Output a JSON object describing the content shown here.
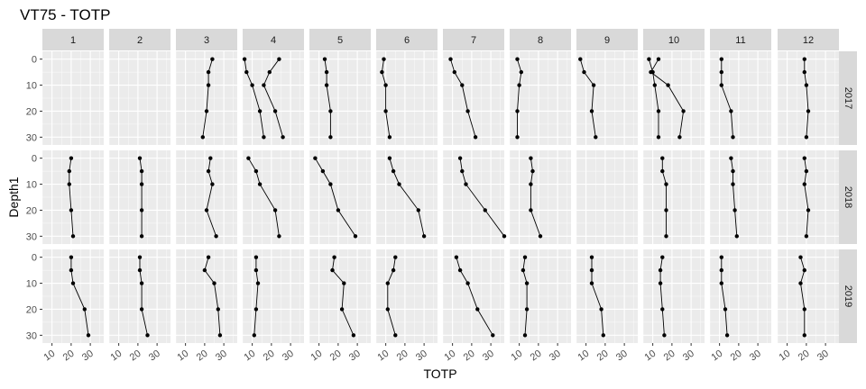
{
  "chart_data": {
    "type": "line",
    "title": "VT75  -  TOTP",
    "xlabel": "TOTP",
    "ylabel": "Depth1",
    "xlim": [
      5,
      37
    ],
    "ylim": [
      -3,
      33
    ],
    "x_ticks": [
      10,
      20,
      30
    ],
    "y_ticks": [
      0,
      10,
      20,
      30
    ],
    "y_reversed": true,
    "grid": true,
    "colors": {
      "panel_bg": "#ebebeb",
      "strip_bg": "#d9d9d9",
      "grid_major": "#ffffff",
      "line": "#000000",
      "point": "#000000"
    },
    "columns": [
      "1",
      "2",
      "3",
      "4",
      "5",
      "6",
      "7",
      "8",
      "9",
      "10",
      "11",
      "12"
    ],
    "rows": [
      "2017",
      "2018",
      "2019"
    ],
    "series": [
      {
        "row": "2017",
        "col": "3",
        "points": [
          [
            24,
            0
          ],
          [
            22,
            5
          ],
          [
            22,
            10
          ],
          [
            21,
            20
          ],
          [
            19,
            30
          ]
        ]
      },
      {
        "row": "2017",
        "col": "4",
        "points": [
          [
            6,
            0
          ],
          [
            7,
            5
          ],
          [
            10,
            10
          ],
          [
            14,
            20
          ],
          [
            16,
            30
          ]
        ]
      },
      {
        "row": "2017",
        "col": "4",
        "points": [
          [
            24,
            0
          ],
          [
            19,
            5
          ],
          [
            16,
            10
          ],
          [
            22,
            20
          ],
          [
            26,
            30
          ]
        ]
      },
      {
        "row": "2017",
        "col": "5",
        "points": [
          [
            13,
            0
          ],
          [
            14,
            5
          ],
          [
            14,
            10
          ],
          [
            16,
            20
          ],
          [
            16,
            30
          ]
        ]
      },
      {
        "row": "2017",
        "col": "6",
        "points": [
          [
            9,
            0
          ],
          [
            8,
            5
          ],
          [
            10,
            10
          ],
          [
            10,
            20
          ],
          [
            12,
            30
          ]
        ]
      },
      {
        "row": "2017",
        "col": "7",
        "points": [
          [
            9,
            0
          ],
          [
            11,
            5
          ],
          [
            15,
            10
          ],
          [
            18,
            20
          ],
          [
            22,
            30
          ]
        ]
      },
      {
        "row": "2017",
        "col": "8",
        "points": [
          [
            9,
            0
          ],
          [
            11,
            5
          ],
          [
            10,
            10
          ],
          [
            9,
            20
          ],
          [
            9,
            30
          ]
        ]
      },
      {
        "row": "2017",
        "col": "9",
        "points": [
          [
            7,
            0
          ],
          [
            9,
            5
          ],
          [
            14,
            10
          ],
          [
            13,
            20
          ],
          [
            15,
            30
          ]
        ]
      },
      {
        "row": "2017",
        "col": "10",
        "points": [
          [
            8,
            0
          ],
          [
            10,
            5
          ],
          [
            11,
            10
          ],
          [
            13,
            20
          ],
          [
            13,
            30
          ]
        ]
      },
      {
        "row": "2017",
        "col": "10",
        "points": [
          [
            13,
            0
          ],
          [
            9,
            5
          ],
          [
            18,
            10
          ],
          [
            26,
            20
          ],
          [
            24,
            30
          ]
        ]
      },
      {
        "row": "2017",
        "col": "11",
        "points": [
          [
            11,
            0
          ],
          [
            11,
            5
          ],
          [
            11,
            10
          ],
          [
            16,
            20
          ],
          [
            17,
            30
          ]
        ]
      },
      {
        "row": "2017",
        "col": "12",
        "points": [
          [
            19,
            0
          ],
          [
            19,
            5
          ],
          [
            20,
            10
          ],
          [
            21,
            20
          ],
          [
            20,
            30
          ]
        ]
      },
      {
        "row": "2018",
        "col": "1",
        "points": [
          [
            20,
            0
          ],
          [
            19,
            5
          ],
          [
            19,
            10
          ],
          [
            20,
            20
          ],
          [
            21,
            30
          ]
        ]
      },
      {
        "row": "2018",
        "col": "2",
        "points": [
          [
            21,
            0
          ],
          [
            22,
            5
          ],
          [
            22,
            10
          ],
          [
            22,
            20
          ],
          [
            22,
            30
          ]
        ]
      },
      {
        "row": "2018",
        "col": "3",
        "points": [
          [
            23,
            0
          ],
          [
            22,
            5
          ],
          [
            24,
            10
          ],
          [
            21,
            20
          ],
          [
            26,
            30
          ]
        ]
      },
      {
        "row": "2018",
        "col": "4",
        "points": [
          [
            8,
            0
          ],
          [
            12,
            5
          ],
          [
            14,
            10
          ],
          [
            22,
            20
          ],
          [
            24,
            30
          ]
        ]
      },
      {
        "row": "2018",
        "col": "5",
        "points": [
          [
            8,
            0
          ],
          [
            12,
            5
          ],
          [
            16,
            10
          ],
          [
            20,
            20
          ],
          [
            29,
            30
          ]
        ]
      },
      {
        "row": "2018",
        "col": "6",
        "points": [
          [
            12,
            0
          ],
          [
            14,
            5
          ],
          [
            17,
            10
          ],
          [
            27,
            20
          ],
          [
            30,
            30
          ]
        ]
      },
      {
        "row": "2018",
        "col": "7",
        "points": [
          [
            14,
            0
          ],
          [
            15,
            5
          ],
          [
            17,
            10
          ],
          [
            27,
            20
          ],
          [
            37,
            30
          ]
        ]
      },
      {
        "row": "2018",
        "col": "8",
        "points": [
          [
            16,
            0
          ],
          [
            17,
            5
          ],
          [
            16,
            10
          ],
          [
            16,
            20
          ],
          [
            21,
            30
          ]
        ]
      },
      {
        "row": "2018",
        "col": "10",
        "points": [
          [
            15,
            0
          ],
          [
            15,
            5
          ],
          [
            17,
            10
          ],
          [
            17,
            20
          ],
          [
            17,
            30
          ]
        ]
      },
      {
        "row": "2018",
        "col": "11",
        "points": [
          [
            16,
            0
          ],
          [
            17,
            5
          ],
          [
            17,
            10
          ],
          [
            18,
            20
          ],
          [
            19,
            30
          ]
        ]
      },
      {
        "row": "2018",
        "col": "12",
        "points": [
          [
            19,
            0
          ],
          [
            20,
            5
          ],
          [
            19,
            10
          ],
          [
            21,
            20
          ],
          [
            20,
            30
          ]
        ]
      },
      {
        "row": "2019",
        "col": "1",
        "points": [
          [
            20,
            0
          ],
          [
            20,
            5
          ],
          [
            21,
            10
          ],
          [
            27,
            20
          ],
          [
            29,
            30
          ]
        ]
      },
      {
        "row": "2019",
        "col": "2",
        "points": [
          [
            21,
            0
          ],
          [
            21,
            5
          ],
          [
            22,
            10
          ],
          [
            22,
            20
          ],
          [
            25,
            30
          ]
        ]
      },
      {
        "row": "2019",
        "col": "3",
        "points": [
          [
            22,
            0
          ],
          [
            20,
            5
          ],
          [
            25,
            10
          ],
          [
            27,
            20
          ],
          [
            28,
            30
          ]
        ]
      },
      {
        "row": "2019",
        "col": "4",
        "points": [
          [
            12,
            0
          ],
          [
            12,
            5
          ],
          [
            13,
            10
          ],
          [
            12,
            20
          ],
          [
            11,
            30
          ]
        ]
      },
      {
        "row": "2019",
        "col": "5",
        "points": [
          [
            18,
            0
          ],
          [
            17,
            5
          ],
          [
            23,
            10
          ],
          [
            22,
            20
          ],
          [
            28,
            30
          ]
        ]
      },
      {
        "row": "2019",
        "col": "6",
        "points": [
          [
            15,
            0
          ],
          [
            14,
            5
          ],
          [
            11,
            10
          ],
          [
            11,
            20
          ],
          [
            15,
            30
          ]
        ]
      },
      {
        "row": "2019",
        "col": "7",
        "points": [
          [
            12,
            0
          ],
          [
            14,
            5
          ],
          [
            18,
            10
          ],
          [
            23,
            20
          ],
          [
            31,
            30
          ]
        ]
      },
      {
        "row": "2019",
        "col": "8",
        "points": [
          [
            13,
            0
          ],
          [
            12,
            5
          ],
          [
            14,
            10
          ],
          [
            14,
            20
          ],
          [
            13,
            30
          ]
        ]
      },
      {
        "row": "2019",
        "col": "9",
        "points": [
          [
            13,
            0
          ],
          [
            13,
            5
          ],
          [
            13,
            10
          ],
          [
            18,
            20
          ],
          [
            19,
            30
          ]
        ]
      },
      {
        "row": "2019",
        "col": "10",
        "points": [
          [
            15,
            0
          ],
          [
            14,
            5
          ],
          [
            14,
            10
          ],
          [
            15,
            20
          ],
          [
            16,
            30
          ]
        ]
      },
      {
        "row": "2019",
        "col": "11",
        "points": [
          [
            11,
            0
          ],
          [
            11,
            5
          ],
          [
            11,
            10
          ],
          [
            13,
            20
          ],
          [
            14,
            30
          ]
        ]
      },
      {
        "row": "2019",
        "col": "12",
        "points": [
          [
            17,
            0
          ],
          [
            19,
            5
          ],
          [
            17,
            10
          ],
          [
            19,
            20
          ],
          [
            19,
            30
          ]
        ]
      }
    ]
  }
}
